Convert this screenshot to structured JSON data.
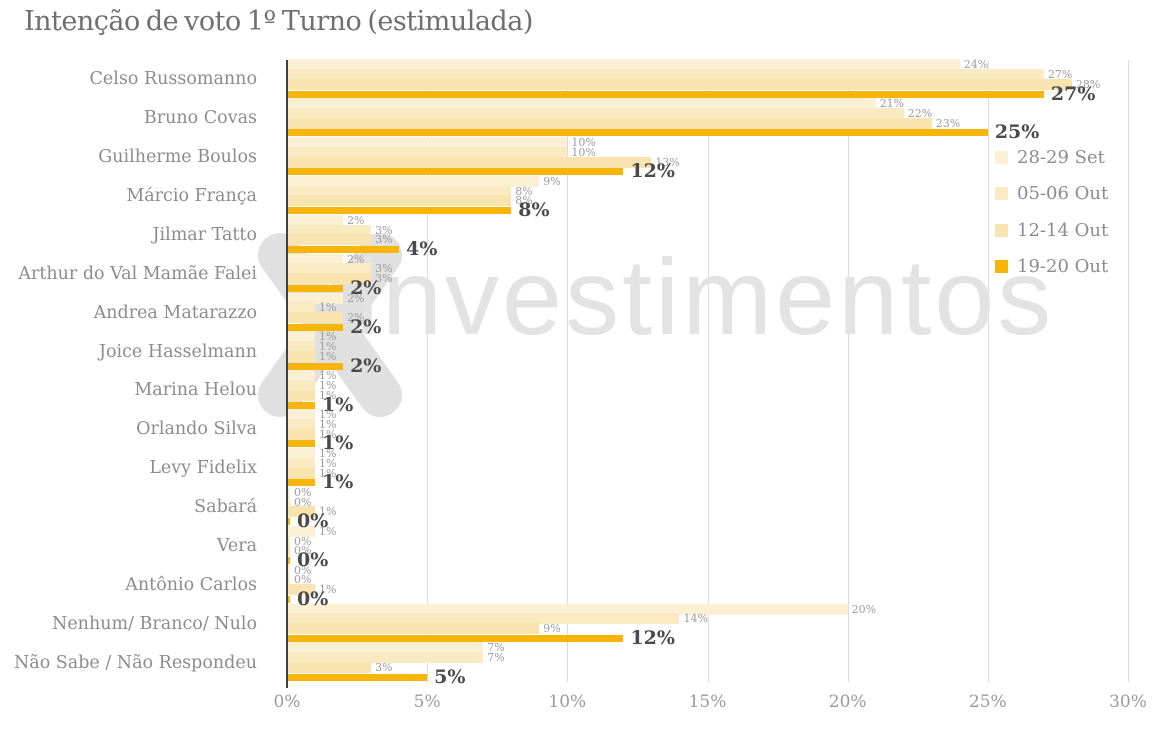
{
  "title": "Intenção de voto 1º Turno (estimulada)",
  "watermark_text": "investimentos",
  "colors": {
    "title": "#6f6f6f",
    "axis_line": "#3f3f3f",
    "gridline": "#dcdcdc",
    "category_label": "#8c8c8c",
    "small_value_label": "#9b9b9b",
    "bold_value_label": "#4a4a4a",
    "watermark": "#e3e3e3"
  },
  "chart_data": {
    "type": "bar",
    "orientation": "horizontal",
    "title": "Intenção de voto 1º Turno (estimulada)",
    "xlabel": "",
    "ylabel": "",
    "xlim": [
      0,
      30
    ],
    "x_ticks": [
      "0%",
      "5%",
      "10%",
      "15%",
      "20%",
      "25%",
      "30%"
    ],
    "grid": true,
    "legend_position": "right",
    "value_label_suffix": "%",
    "categories": [
      "Celso Russomanno",
      "Bruno Covas",
      "Guilherme Boulos",
      "Márcio França",
      "Jilmar Tatto",
      "Arthur do Val Mamãe Falei",
      "Andrea Matarazzo",
      "Joice Hasselmann",
      "Marina Helou",
      "Orlando Silva",
      "Levy Fidelix",
      "Sabará",
      "Vera",
      "Antônio Carlos",
      "Nenhum/ Branco/ Nulo",
      "Não Sabe / Não Respondeu"
    ],
    "series": [
      {
        "name": "28-29 Set",
        "color": "#FBF0D3",
        "emphasis": false,
        "values": [
          24,
          21,
          10,
          9,
          2,
          2,
          2,
          1,
          1,
          1,
          1,
          0,
          1,
          0,
          20,
          7
        ]
      },
      {
        "name": "05-06 Out",
        "color": "#FAEAC1",
        "emphasis": false,
        "values": [
          27,
          22,
          10,
          8,
          3,
          3,
          1,
          1,
          1,
          1,
          1,
          0,
          0,
          0,
          14,
          7
        ]
      },
      {
        "name": "12-14 Out",
        "color": "#F9E3AF",
        "emphasis": false,
        "values": [
          28,
          23,
          13,
          8,
          3,
          3,
          2,
          1,
          1,
          1,
          1,
          1,
          0,
          1,
          9,
          3
        ]
      },
      {
        "name": "19-20 Out",
        "color": "#F7B50A",
        "emphasis": true,
        "values": [
          27,
          25,
          12,
          8,
          4,
          2,
          2,
          2,
          1,
          1,
          1,
          0,
          0,
          0,
          12,
          5
        ]
      }
    ]
  }
}
